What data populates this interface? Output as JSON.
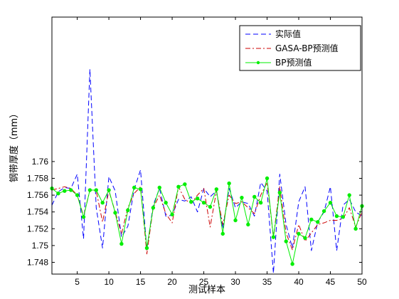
{
  "chart_data": {
    "type": "line",
    "xlabel": "测试样本",
    "ylabel": "钢带厚度（mm）",
    "xlim": [
      1,
      50
    ],
    "ylim": [
      1.7466,
      1.7772
    ],
    "xticks": [
      5,
      10,
      15,
      20,
      25,
      30,
      35,
      40,
      45,
      50
    ],
    "yticks": [
      1.748,
      1.75,
      1.752,
      1.754,
      1.756,
      1.758,
      1.76
    ],
    "ytick_labels": [
      "1.748",
      "1.75",
      "1.752",
      "1.754",
      "1.756",
      "1.758",
      "1.76"
    ],
    "grid": false,
    "legend_position": "top-right",
    "x": [
      1,
      2,
      3,
      4,
      5,
      6,
      7,
      8,
      9,
      10,
      11,
      12,
      13,
      14,
      15,
      16,
      17,
      18,
      19,
      20,
      21,
      22,
      23,
      24,
      25,
      26,
      27,
      28,
      29,
      30,
      31,
      32,
      33,
      34,
      35,
      36,
      37,
      38,
      39,
      40,
      41,
      42,
      43,
      44,
      45,
      46,
      47,
      48,
      49,
      50
    ],
    "series": [
      {
        "name": "实际值",
        "color": "#0000ff",
        "style": "dashed",
        "values": [
          1.7548,
          1.7564,
          1.7569,
          1.7568,
          1.7585,
          1.7508,
          1.771,
          1.7545,
          1.7497,
          1.7582,
          1.7565,
          1.751,
          1.7523,
          1.7567,
          1.759,
          1.7495,
          1.7548,
          1.7568,
          1.7535,
          1.7536,
          1.7555,
          1.7553,
          1.7558,
          1.754,
          1.7568,
          1.7558,
          1.7565,
          1.752,
          1.7568,
          1.7545,
          1.7552,
          1.755,
          1.7535,
          1.7575,
          1.7565,
          1.7467,
          1.7585,
          1.7525,
          1.7497,
          1.7552,
          1.757,
          1.7494,
          1.7528,
          1.754,
          1.757,
          1.7494,
          1.7548,
          1.7555,
          1.754,
          1.7535
        ]
      },
      {
        "name": "GASA-BP预测值",
        "color": "#cc0000",
        "style": "dashdot",
        "values": [
          1.7566,
          1.7568,
          1.757,
          1.7568,
          1.756,
          1.7535,
          1.7566,
          1.7565,
          1.7528,
          1.7565,
          1.754,
          1.7514,
          1.7545,
          1.7562,
          1.757,
          1.749,
          1.7545,
          1.756,
          1.7538,
          1.7527,
          1.757,
          1.7555,
          1.755,
          1.756,
          1.7568,
          1.7522,
          1.7565,
          1.7525,
          1.756,
          1.755,
          1.7552,
          1.7545,
          1.7538,
          1.756,
          1.7575,
          1.751,
          1.757,
          1.7515,
          1.7495,
          1.7525,
          1.7505,
          1.7515,
          1.7525,
          1.7527,
          1.753,
          1.753,
          1.7532,
          1.7545,
          1.7522,
          1.754
        ]
      },
      {
        "name": "BP预测值",
        "color": "#00ee00",
        "style": "solid-markers",
        "values": [
          1.7568,
          1.7562,
          1.7565,
          1.7566,
          1.756,
          1.7534,
          1.7566,
          1.7566,
          1.7551,
          1.7566,
          1.7539,
          1.7502,
          1.7542,
          1.7569,
          1.7567,
          1.7497,
          1.7545,
          1.7569,
          1.7551,
          1.7537,
          1.757,
          1.7573,
          1.7552,
          1.7556,
          1.7551,
          1.7546,
          1.7567,
          1.7514,
          1.7574,
          1.753,
          1.7557,
          1.7525,
          1.7558,
          1.7551,
          1.758,
          1.751,
          1.7563,
          1.7505,
          1.7478,
          1.7514,
          1.7509,
          1.7531,
          1.7528,
          1.7541,
          1.7551,
          1.7535,
          1.7534,
          1.756,
          1.752,
          1.7547
        ]
      }
    ]
  }
}
